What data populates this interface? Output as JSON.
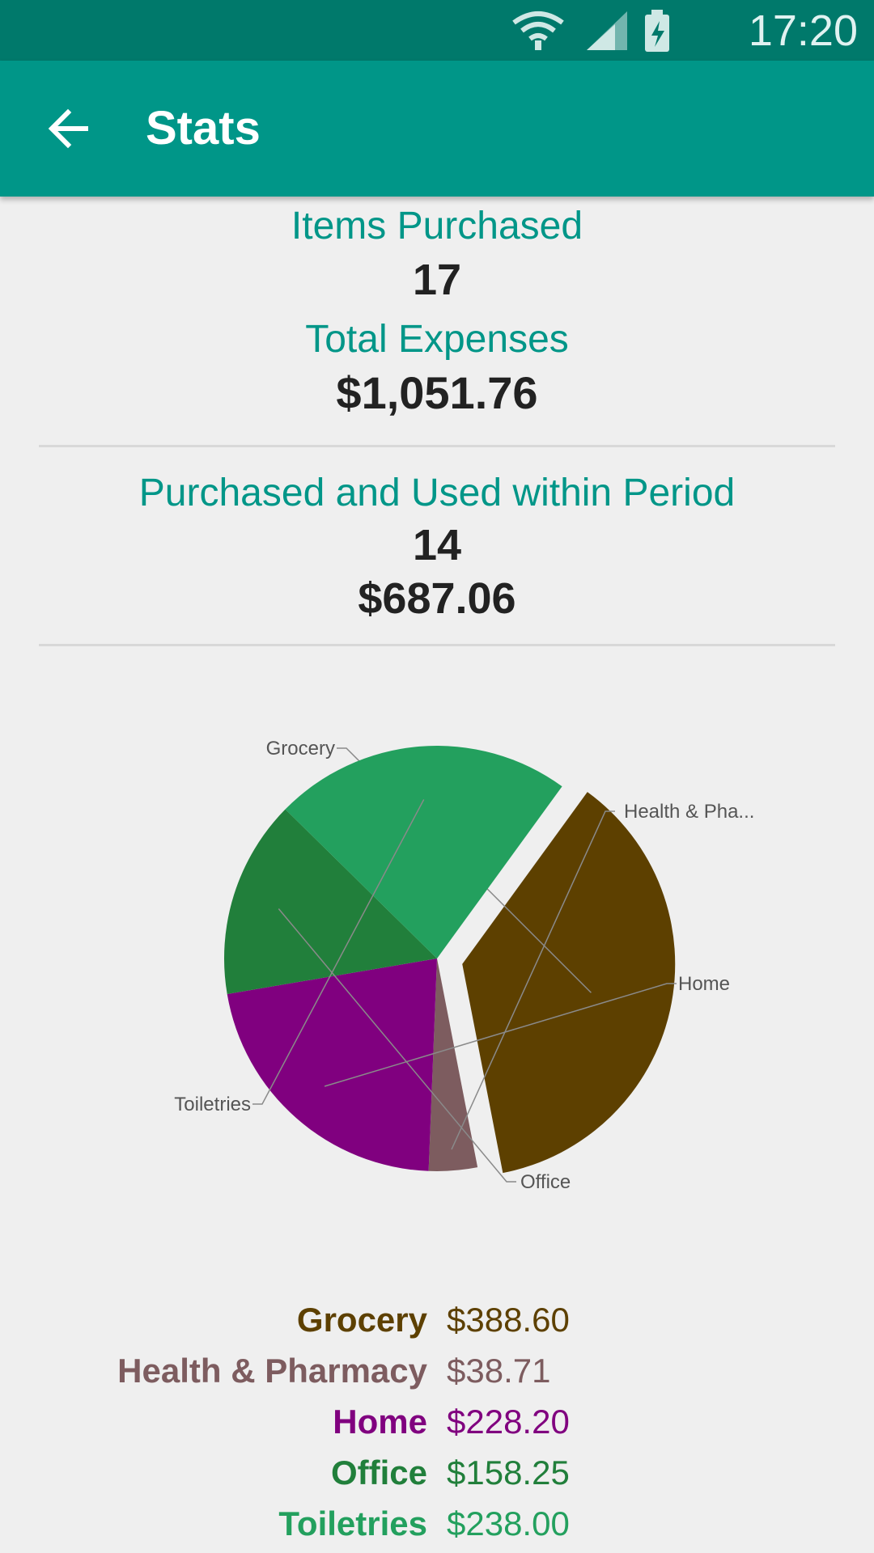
{
  "status_bar": {
    "time": "17:20",
    "icons": [
      "wifi-icon",
      "signal-icon",
      "battery-charging-icon"
    ]
  },
  "app_bar": {
    "back_icon": "arrow-left-icon",
    "title": "Stats"
  },
  "summary": {
    "items_label": "Items Purchased",
    "items_value": "17",
    "expenses_label": "Total Expenses",
    "expenses_value": "$1,051.76"
  },
  "period": {
    "label": "Purchased and Used within Period",
    "count": "14",
    "amount": "$687.06"
  },
  "chart_data": {
    "type": "pie",
    "slices": [
      {
        "label": "Grocery",
        "display_label": "Grocery",
        "value": 388.6,
        "color": "#5d4000",
        "exploded": true
      },
      {
        "label": "Health & Pharmacy",
        "display_label": "Health & Pha...",
        "value": 38.71,
        "color": "#7d5c5f",
        "exploded": false
      },
      {
        "label": "Home",
        "display_label": "Home",
        "value": 228.2,
        "color": "#80007f",
        "exploded": false
      },
      {
        "label": "Office",
        "display_label": "Office",
        "value": 158.25,
        "color": "#217f3b",
        "exploded": false
      },
      {
        "label": "Toiletries",
        "display_label": "Toiletries",
        "value": 238.0,
        "color": "#23a05e",
        "exploded": false
      }
    ]
  },
  "legend": [
    {
      "name": "Grocery",
      "value": "$388.60",
      "color": "#5d4000"
    },
    {
      "name": "Health & Pharmacy",
      "value": "$38.71",
      "color": "#7d5c5f"
    },
    {
      "name": "Home",
      "value": "$228.20",
      "color": "#80007f"
    },
    {
      "name": "Office",
      "value": "$158.25",
      "color": "#217f3b"
    },
    {
      "name": "Toiletries",
      "value": "$238.00",
      "color": "#23a05e"
    }
  ]
}
